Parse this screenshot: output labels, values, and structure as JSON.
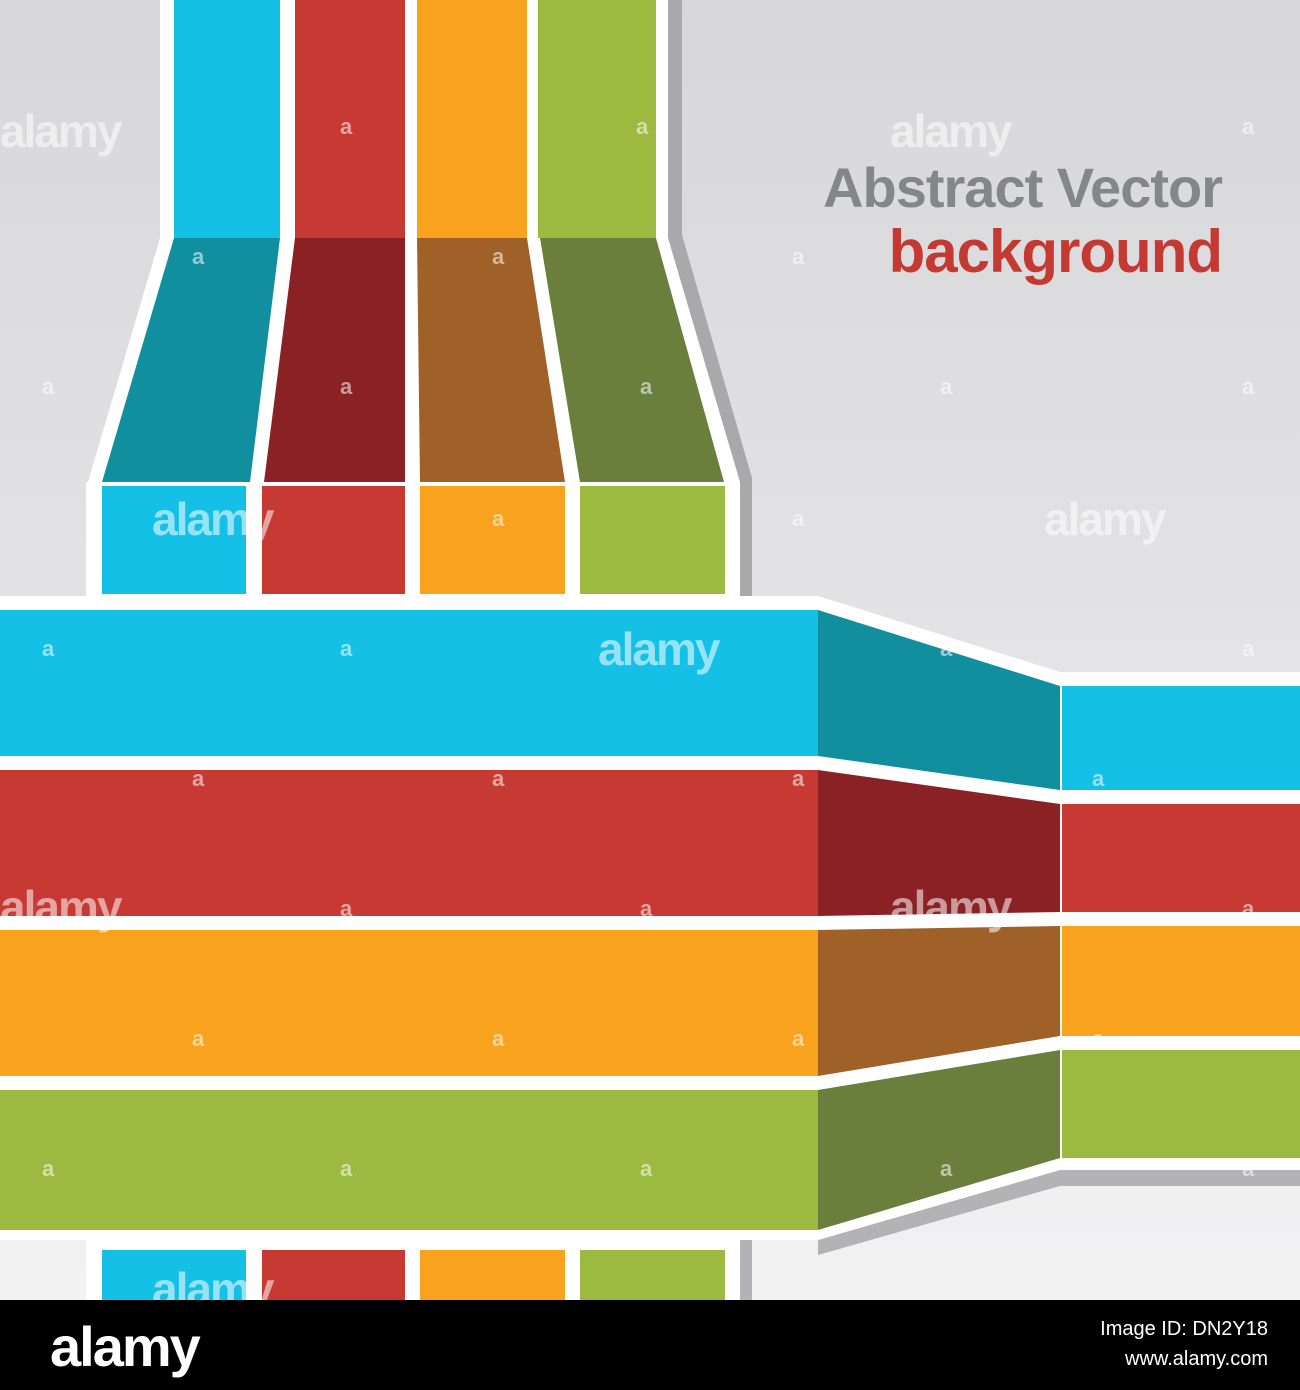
{
  "title": {
    "line1": "Abstract Vector",
    "line2": "background"
  },
  "watermark": {
    "word": "alamy",
    "letter": "a"
  },
  "footer": {
    "logo": "alamy",
    "image_id": "Image ID: DN2Y18",
    "url": "www.alamy.com"
  },
  "colors": {
    "background": "#dcdcde",
    "blue": "#15c0e6",
    "red": "#c63a33",
    "orange": "#f8a21e",
    "green": "#9bba3f",
    "blue_dark": "#128f9e",
    "red_dark": "#8a2124",
    "orange_dark": "#a06128",
    "green_dark": "#6a7f3b",
    "title_gray": "#858688",
    "title_red": "#c43a33"
  }
}
